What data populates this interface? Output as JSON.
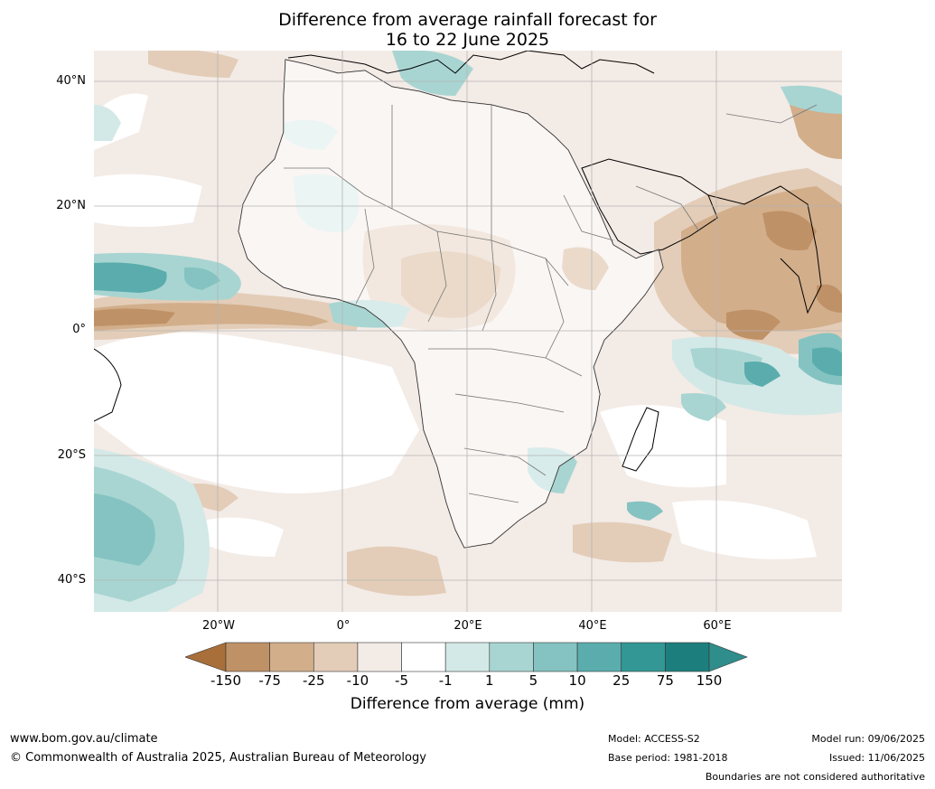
{
  "title": {
    "line1": "Difference from average rainfall forecast for",
    "line2": "16 to 22 June 2025"
  },
  "axes": {
    "lat_labels": [
      "40°N",
      "20°N",
      "0°",
      "20°S",
      "40°S"
    ],
    "lon_labels": [
      "20°W",
      "0°",
      "20°E",
      "40°E",
      "60°E"
    ]
  },
  "colorbar": {
    "label": "Difference from average (mm)",
    "ticks": [
      "-150",
      "-75",
      "-25",
      "-10",
      "-5",
      "-1",
      "1",
      "5",
      "10",
      "25",
      "75",
      "150"
    ],
    "colors": [
      "#a86f3a",
      "#bf9166",
      "#d2ae8b",
      "#e3cdb8",
      "#f3ebe6",
      "#ffffff",
      "#d3e9e7",
      "#a8d5d2",
      "#84c3c1",
      "#5aadac",
      "#329795",
      "#1d7f7d"
    ],
    "extend_colors": {
      "low": "#a86f3a",
      "high": "#2f8d8b"
    }
  },
  "map": {
    "region": "Africa",
    "land_color": "#ffffff",
    "dry_colors": {
      "light": "#f3ebe6",
      "mid": "#e3cdb8",
      "strong": "#d2ae8b",
      "stronger": "#bf9166"
    },
    "wet_colors": {
      "light": "#d3e9e7",
      "mid": "#a8d5d2",
      "strong": "#84c3c1",
      "stronger": "#5aadac"
    }
  },
  "footer": {
    "website": "www.bom.gov.au/climate",
    "copyright": "© Commonwealth of Australia 2025, Australian Bureau of Meteorology",
    "model": "Model: ACCESS-S2",
    "base_period": "Base period: 1981-2018",
    "model_run": "Model run: 09/06/2025",
    "issued": "Issued: 11/06/2025",
    "disclaimer": "Boundaries are not considered authoritative"
  }
}
